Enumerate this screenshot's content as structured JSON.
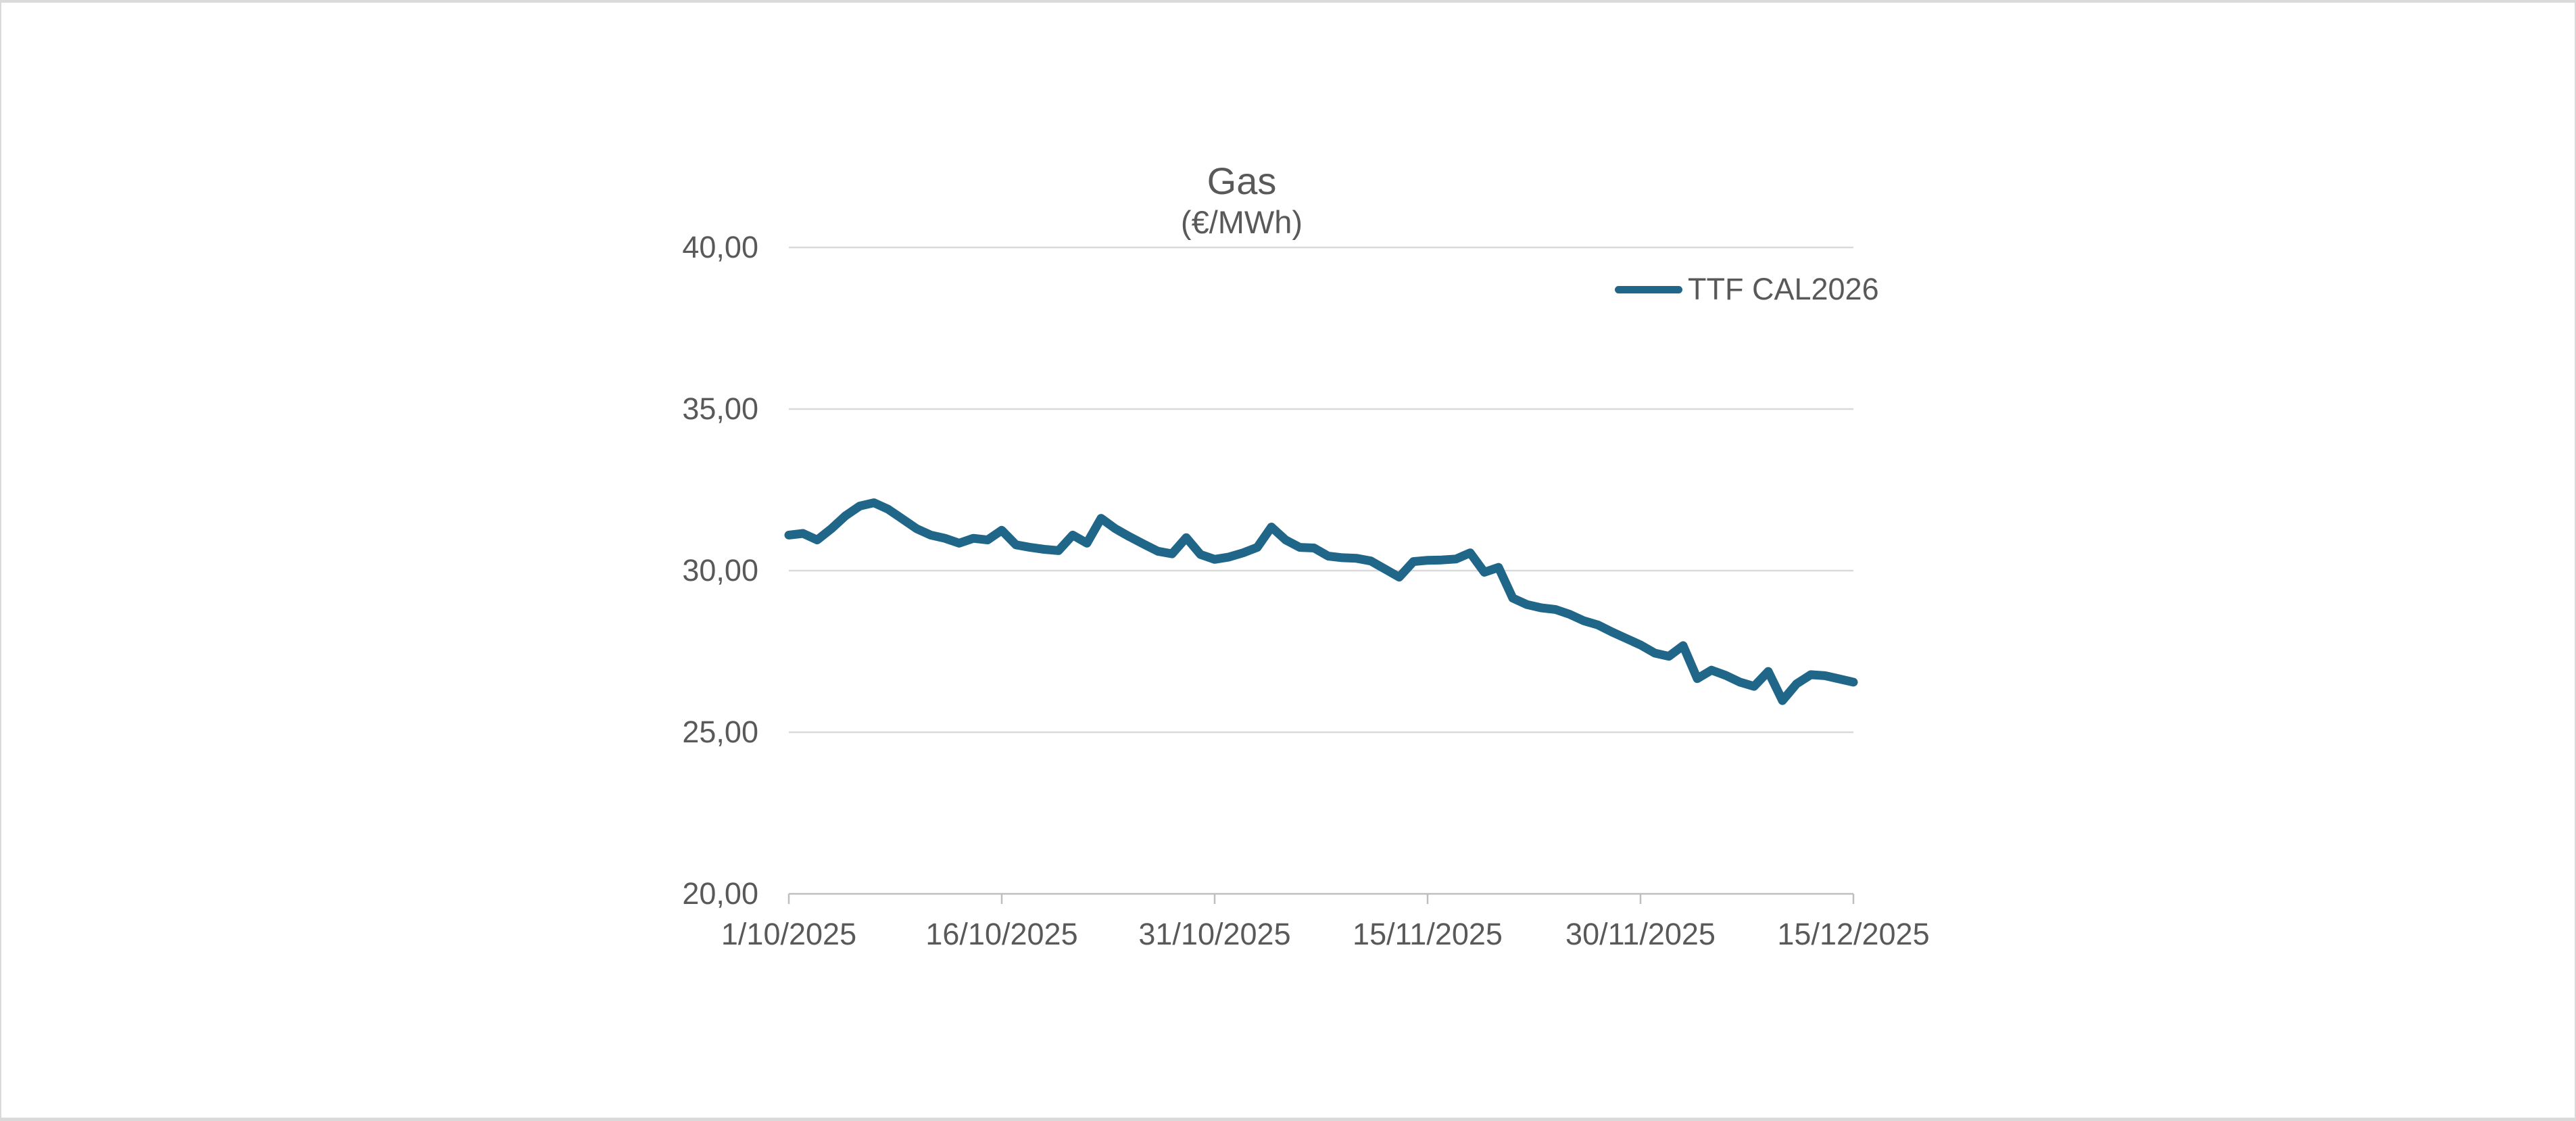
{
  "window": {
    "background": "#ffffff",
    "border_color": "#dadada"
  },
  "chart_data": {
    "type": "line",
    "title": "Gas",
    "subtitle": "(€/MWh)",
    "legend": {
      "position": "top-right",
      "entries": [
        "TTF CAL2026"
      ]
    },
    "ylim": [
      20,
      40
    ],
    "grid": "horizontal",
    "colors": {
      "gridline": "#d9d9d9",
      "axis": "#bfbfbf",
      "text": "#595959",
      "series": "#1f6688"
    },
    "y_ticks": [
      {
        "label": "40,00",
        "value": 40
      },
      {
        "label": "35,00",
        "value": 35
      },
      {
        "label": "30,00",
        "value": 30
      },
      {
        "label": "25,00",
        "value": 25
      },
      {
        "label": "20,00",
        "value": 20
      }
    ],
    "x_ticks": [
      {
        "label": "1/10/2025",
        "index": 0
      },
      {
        "label": "16/10/2025",
        "index": 15
      },
      {
        "label": "31/10/2025",
        "index": 30
      },
      {
        "label": "15/11/2025",
        "index": 45
      },
      {
        "label": "30/11/2025",
        "index": 60
      },
      {
        "label": "15/12/2025",
        "index": 75
      }
    ],
    "series": [
      {
        "name": "TTF CAL2026",
        "color": "#1f6688",
        "x": [
          "1/10/2025",
          "2/10/2025",
          "3/10/2025",
          "4/10/2025",
          "5/10/2025",
          "6/10/2025",
          "7/10/2025",
          "8/10/2025",
          "9/10/2025",
          "10/10/2025",
          "11/10/2025",
          "12/10/2025",
          "13/10/2025",
          "14/10/2025",
          "15/10/2025",
          "16/10/2025",
          "17/10/2025",
          "18/10/2025",
          "19/10/2025",
          "20/10/2025",
          "21/10/2025",
          "22/10/2025",
          "23/10/2025",
          "24/10/2025",
          "25/10/2025",
          "26/10/2025",
          "27/10/2025",
          "28/10/2025",
          "29/10/2025",
          "30/10/2025",
          "31/10/2025",
          "1/11/2025",
          "2/11/2025",
          "3/11/2025",
          "4/11/2025",
          "5/11/2025",
          "6/11/2025",
          "7/11/2025",
          "8/11/2025",
          "9/11/2025",
          "10/11/2025",
          "11/11/2025",
          "12/11/2025",
          "13/11/2025",
          "14/11/2025",
          "15/11/2025",
          "16/11/2025",
          "17/11/2025",
          "18/11/2025",
          "19/11/2025",
          "20/11/2025",
          "21/11/2025",
          "22/11/2025",
          "23/11/2025",
          "24/11/2025",
          "25/11/2025",
          "26/11/2025",
          "27/11/2025",
          "28/11/2025",
          "29/11/2025",
          "30/11/2025",
          "1/12/2025",
          "2/12/2025",
          "3/12/2025",
          "4/12/2025",
          "5/12/2025",
          "6/12/2025",
          "7/12/2025",
          "8/12/2025",
          "9/12/2025",
          "10/12/2025",
          "11/12/2025",
          "12/12/2025",
          "13/12/2025",
          "14/12/2025",
          "15/12/2025"
        ],
        "values": [
          31.1,
          31.15,
          30.95,
          31.3,
          31.7,
          32.0,
          32.1,
          31.9,
          31.6,
          31.3,
          31.1,
          31.0,
          30.85,
          31.0,
          30.95,
          31.25,
          30.8,
          30.72,
          30.66,
          30.62,
          31.1,
          30.85,
          31.62,
          31.3,
          31.05,
          30.82,
          30.6,
          30.52,
          31.02,
          30.5,
          30.35,
          30.42,
          30.55,
          30.72,
          31.35,
          30.95,
          30.72,
          30.7,
          30.45,
          30.4,
          30.38,
          30.3,
          30.05,
          29.8,
          30.28,
          30.32,
          30.33,
          30.36,
          30.55,
          29.95,
          30.1,
          29.15,
          28.95,
          28.85,
          28.8,
          28.65,
          28.45,
          28.32,
          28.1,
          27.9,
          27.7,
          27.45,
          27.35,
          27.68,
          26.66,
          26.92,
          26.76,
          26.55,
          26.42,
          26.88,
          25.98,
          26.5,
          26.78,
          26.75,
          26.65,
          26.55
        ]
      }
    ]
  }
}
